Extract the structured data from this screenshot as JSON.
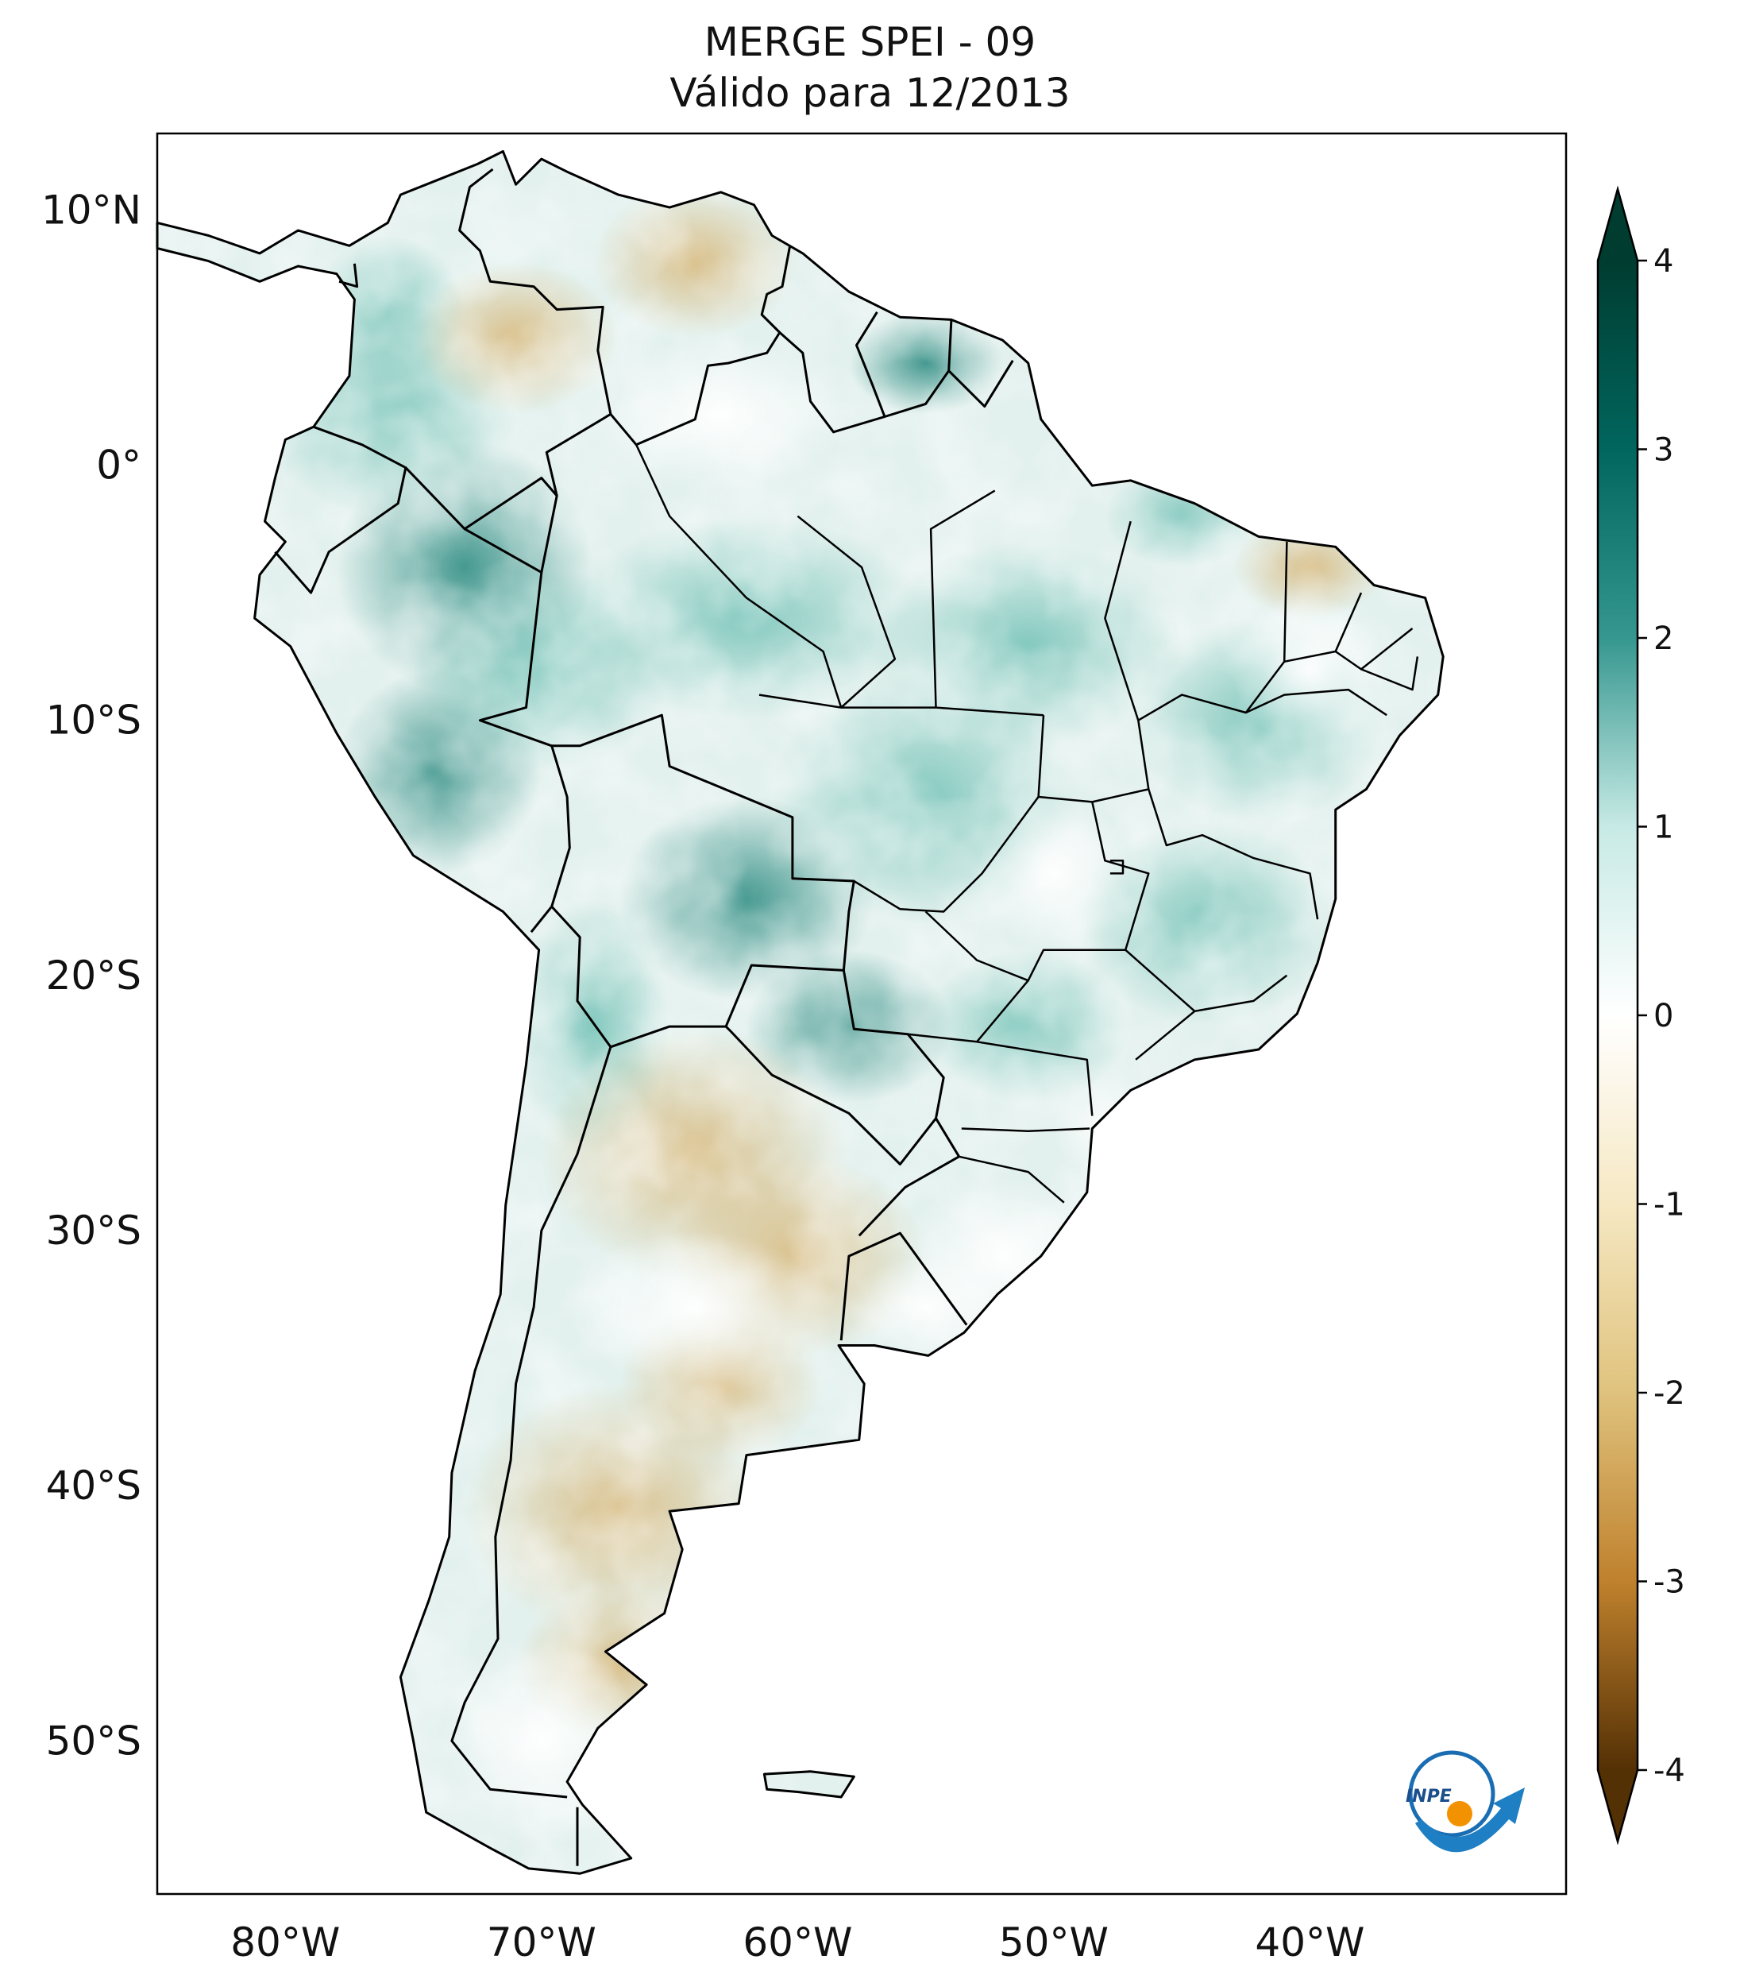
{
  "title": {
    "line1": "MERGE   SPEI - 09",
    "line2": "Válido para 12/2013"
  },
  "map": {
    "lon_range": [
      -85,
      -30
    ],
    "lat_range": [
      -56,
      13
    ],
    "lat_ticks": [
      {
        "value": 10,
        "label": "10°N"
      },
      {
        "value": 0,
        "label": "0°"
      },
      {
        "value": -10,
        "label": "10°S"
      },
      {
        "value": -20,
        "label": "20°S"
      },
      {
        "value": -30,
        "label": "30°S"
      },
      {
        "value": -40,
        "label": "40°S"
      },
      {
        "value": -50,
        "label": "50°S"
      }
    ],
    "lon_ticks": [
      {
        "value": -80,
        "label": "80°W"
      },
      {
        "value": -70,
        "label": "70°W"
      },
      {
        "value": -60,
        "label": "60°W"
      },
      {
        "value": -50,
        "label": "50°W"
      },
      {
        "value": -40,
        "label": "40°W"
      }
    ],
    "colormap": "BrBG",
    "colors": {
      "ocean": "#ffffff",
      "border": "#000000",
      "land_base": "#e3f1ee"
    }
  },
  "colorbar": {
    "min": -4,
    "max": 4,
    "extend": "both",
    "ticks": [
      {
        "value": 4,
        "label": "4"
      },
      {
        "value": 3,
        "label": "3"
      },
      {
        "value": 2,
        "label": "2"
      },
      {
        "value": 1,
        "label": "1"
      },
      {
        "value": 0,
        "label": "0"
      },
      {
        "value": -1,
        "label": "-1"
      },
      {
        "value": -2,
        "label": "-2"
      },
      {
        "value": -3,
        "label": "-3"
      },
      {
        "value": -4,
        "label": "-4"
      }
    ],
    "stops": [
      {
        "value": 4,
        "color": "#003c30"
      },
      {
        "value": 3,
        "color": "#01665e"
      },
      {
        "value": 2,
        "color": "#35978f"
      },
      {
        "value": 1,
        "color": "#c7eae5"
      },
      {
        "value": 0,
        "color": "#ffffff"
      },
      {
        "value": -1,
        "color": "#f6e8c3"
      },
      {
        "value": -2,
        "color": "#dfc27d"
      },
      {
        "value": -3,
        "color": "#bf812d"
      },
      {
        "value": -4,
        "color": "#543005"
      }
    ]
  },
  "logo": {
    "text": "INPE"
  }
}
